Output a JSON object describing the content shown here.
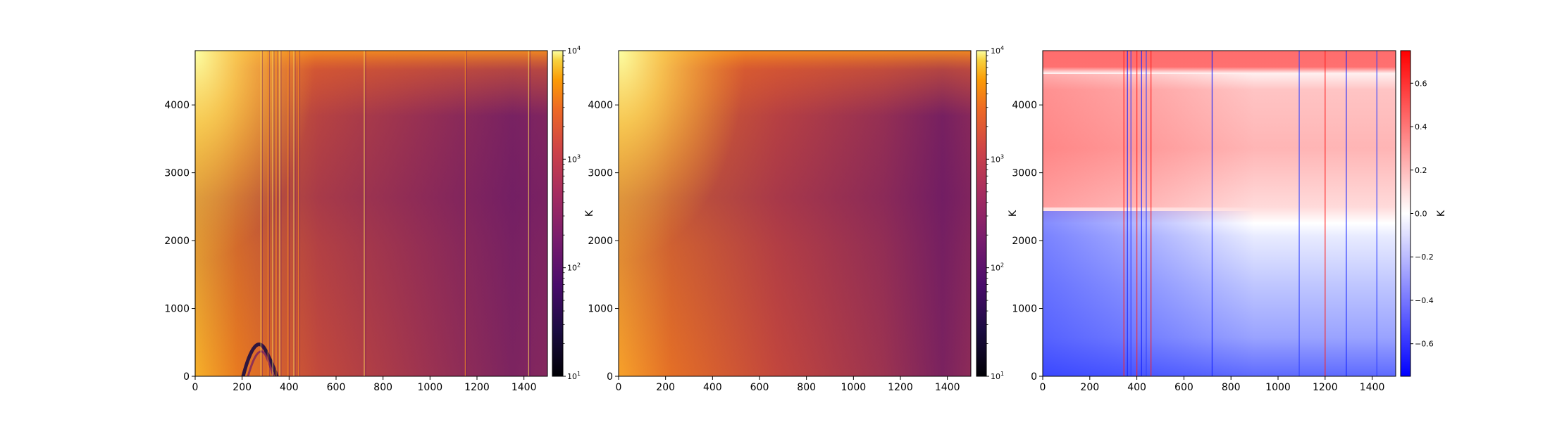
{
  "chart_data": [
    {
      "type": "heatmap",
      "title": "",
      "xlabel": "",
      "ylabel": "",
      "xlim": [
        0,
        1500
      ],
      "ylim": [
        0,
        4800
      ],
      "x_ticks": [
        "0",
        "200",
        "400",
        "600",
        "800",
        "1000",
        "1200",
        "1400"
      ],
      "y_ticks": [
        "0",
        "1000",
        "2000",
        "3000",
        "4000"
      ],
      "colormap": "inferno",
      "colorbar": {
        "scale": "log",
        "range": [
          10,
          10000
        ],
        "label": "K",
        "ticks": [
          {
            "base": "10",
            "exp": "1"
          },
          {
            "base": "10",
            "exp": "2"
          },
          {
            "base": "10",
            "exp": "3"
          },
          {
            "base": "10",
            "exp": "4"
          }
        ]
      },
      "features": {
        "vertical_streaks_x": [
          280,
          310,
          330,
          345,
          360,
          395,
          420,
          440,
          720,
          1150,
          1420
        ],
        "dark_arc_x": [
          210,
          380
        ],
        "dark_arc_peak_y": 420
      }
    },
    {
      "type": "heatmap",
      "title": "",
      "xlabel": "",
      "ylabel": "",
      "xlim": [
        0,
        1500
      ],
      "ylim": [
        0,
        4800
      ],
      "x_ticks": [
        "0",
        "200",
        "400",
        "600",
        "800",
        "1000",
        "1200",
        "1400"
      ],
      "y_ticks": [
        "0",
        "1000",
        "2000",
        "3000",
        "4000"
      ],
      "colormap": "inferno",
      "colorbar": {
        "scale": "log",
        "range": [
          10,
          10000
        ],
        "label": "K",
        "ticks": [
          {
            "base": "10",
            "exp": "1"
          },
          {
            "base": "10",
            "exp": "2"
          },
          {
            "base": "10",
            "exp": "3"
          },
          {
            "base": "10",
            "exp": "4"
          }
        ]
      }
    },
    {
      "type": "heatmap",
      "title": "",
      "xlabel": "",
      "ylabel": "",
      "xlim": [
        0,
        1500
      ],
      "ylim": [
        0,
        4800
      ],
      "x_ticks": [
        "0",
        "200",
        "400",
        "600",
        "800",
        "1000",
        "1200",
        "1400"
      ],
      "y_ticks": [
        "0",
        "1000",
        "2000",
        "3000",
        "4000"
      ],
      "colormap": "bwr",
      "colorbar": {
        "scale": "linear",
        "range": [
          -0.75,
          0.75
        ],
        "label": "K",
        "ticks": [
          "−0.6",
          "−0.4",
          "−0.2",
          "0.0",
          "0.2",
          "0.4",
          "0.6"
        ]
      },
      "features": {
        "zero_contour_y": 2200,
        "vertical_streaks_x": [
          345,
          360,
          375,
          400,
          420,
          440,
          460,
          720,
          1090,
          1200,
          1290,
          1420
        ]
      }
    }
  ]
}
